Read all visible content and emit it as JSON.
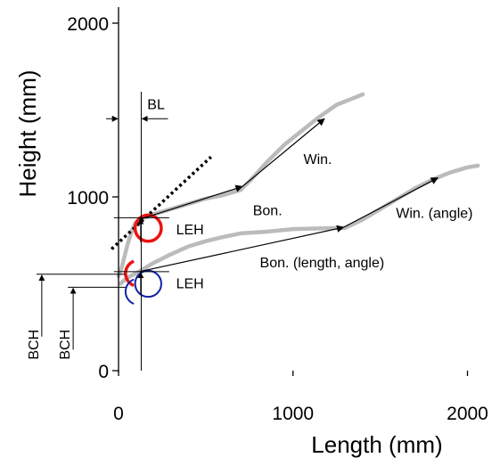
{
  "chart_data": {
    "type": "line",
    "xlabel": "Length (mm)",
    "ylabel": "Height (mm)",
    "xlim": [
      0,
      2100
    ],
    "ylim": [
      0,
      2100
    ],
    "xticks": [
      "0",
      "1000",
      "2000"
    ],
    "xtick_values": [
      0,
      1000,
      2000
    ],
    "yticks": [
      "0",
      "1000",
      "2000"
    ],
    "ytick_values": [
      0,
      1000,
      2000
    ],
    "grid": false,
    "series": [
      {
        "color": "#bbbbbb",
        "points": [
          [
            0,
            545
          ],
          [
            20,
            600
          ],
          [
            50,
            720
          ],
          [
            75,
            800
          ],
          [
            95,
            850
          ],
          [
            120,
            870
          ],
          [
            200,
            900
          ],
          [
            300,
            930
          ],
          [
            400,
            960
          ],
          [
            500,
            990
          ],
          [
            600,
            1010
          ],
          [
            700,
            1040
          ],
          [
            760,
            1100
          ],
          [
            850,
            1200
          ],
          [
            950,
            1300
          ],
          [
            1050,
            1380
          ],
          [
            1150,
            1460
          ],
          [
            1250,
            1530
          ],
          [
            1350,
            1570
          ],
          [
            1400,
            1590
          ]
        ]
      },
      {
        "color": "#bbbbbb",
        "points": [
          [
            10,
            500
          ],
          [
            50,
            535
          ],
          [
            100,
            560
          ],
          [
            150,
            590
          ],
          [
            200,
            620
          ],
          [
            300,
            670
          ],
          [
            400,
            715
          ],
          [
            500,
            745
          ],
          [
            600,
            770
          ],
          [
            700,
            790
          ],
          [
            850,
            800
          ],
          [
            1000,
            815
          ],
          [
            1200,
            820
          ],
          [
            1300,
            822
          ],
          [
            1400,
            870
          ],
          [
            1500,
            930
          ],
          [
            1600,
            990
          ],
          [
            1700,
            1050
          ],
          [
            1800,
            1100
          ],
          [
            1900,
            1140
          ],
          [
            2000,
            1170
          ],
          [
            2060,
            1180
          ]
        ]
      }
    ],
    "arrows": [
      {
        "from": [
          120,
          870
        ],
        "to": [
          710,
          1060
        ]
      },
      {
        "from": [
          710,
          1060
        ],
        "to": [
          1180,
          1450
        ]
      },
      {
        "from": [
          120,
          570
        ],
        "to": [
          1290,
          825
        ]
      },
      {
        "from": [
          1290,
          825
        ],
        "to": [
          1830,
          1110
        ]
      }
    ],
    "tangent_line": {
      "from": [
        -40,
        700
      ],
      "to": [
        530,
        1230
      ]
    },
    "circles": [
      {
        "center": [
          170,
          820
        ],
        "radius": 60,
        "color": "#ee1111",
        "arc": "full"
      },
      {
        "center": [
          60,
          560
        ],
        "radius": 60,
        "color": "#ee1111",
        "arc": "left"
      },
      {
        "center": [
          170,
          500
        ],
        "radius": 60,
        "color": "#1122aa",
        "arc": "full"
      },
      {
        "center": [
          60,
          455
        ],
        "radius": 60,
        "color": "#1122aa",
        "arc": "left"
      }
    ],
    "annotations": [
      {
        "id": "win",
        "text": "Win.",
        "x": 1060,
        "y": 1190
      },
      {
        "id": "bon",
        "text": "Bon.",
        "x": 770,
        "y": 895
      },
      {
        "id": "win-angle",
        "text": "Win. (angle)",
        "x": 1590,
        "y": 880
      },
      {
        "id": "bon-length-angle",
        "text": "Bon. (length, angle)",
        "x": 810,
        "y": 595
      },
      {
        "id": "leh-upper",
        "text": "LEH",
        "x": 330,
        "y": 785
      },
      {
        "id": "leh-lower",
        "text": "LEH",
        "x": 330,
        "y": 475
      },
      {
        "id": "bl",
        "text": "BL",
        "x": 165,
        "y": 1505
      },
      {
        "id": "bch-1",
        "text": "BCH",
        "x": -460,
        "y": 150
      },
      {
        "id": "bch-2",
        "text": "BCH",
        "x": -280,
        "y": 150
      }
    ],
    "dimension_markers": {
      "bl": {
        "y": 1450,
        "x_left": 0,
        "x_right": 130
      },
      "leh_upper": {
        "x": 270,
        "y_top": 880,
        "y_bottom": 740
      },
      "leh_lower": {
        "x": 270,
        "y_top": 570,
        "y_bottom": 440
      },
      "bch_1": {
        "x": -440,
        "y_top": 555
      },
      "bch_2": {
        "x": -260,
        "y_top": 480
      }
    },
    "reference_line_x": 130
  }
}
